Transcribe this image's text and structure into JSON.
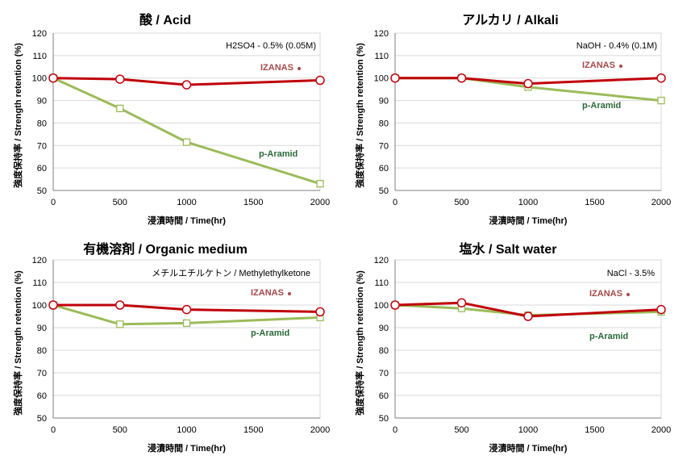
{
  "colors": {
    "izanas": "#c0000a",
    "aramid": "#9bbb59",
    "izanas_label": "#a44a49",
    "aramid_label": "#2a6a3a",
    "grid": "#d9d9d9"
  },
  "chart_data": [
    {
      "type": "line",
      "title": "酸 / Acid",
      "note": "H2SO4 - 0.5% (0.05M)",
      "xlabel": "浸漬時間 / Time(hr)",
      "ylabel": "強度保持率 / Strength retention (%)",
      "xlim": [
        0,
        2000
      ],
      "ylim": [
        50,
        120
      ],
      "xticks": [
        0,
        500,
        1000,
        1500,
        2000
      ],
      "yticks": [
        50,
        60,
        70,
        80,
        90,
        100,
        110,
        120
      ],
      "grid": true,
      "series": [
        {
          "name": "IZANAS",
          "marker": "circle",
          "x": [
            0,
            500,
            1000,
            2000
          ],
          "y": [
            100,
            99.5,
            97,
            99
          ]
        },
        {
          "name": "p-Aramid",
          "marker": "square",
          "x": [
            0,
            500,
            1000,
            2000
          ],
          "y": [
            100,
            86.5,
            71.5,
            53
          ]
        }
      ]
    },
    {
      "type": "line",
      "title": "アルカリ / Alkali",
      "note": "NaOH - 0.4% (0.1M)",
      "xlabel": "浸漬時間 / Time(hr)",
      "ylabel": "強度保持率 / Strength retention (%)",
      "xlim": [
        0,
        2000
      ],
      "ylim": [
        50,
        120
      ],
      "xticks": [
        0,
        500,
        1000,
        1500,
        2000
      ],
      "yticks": [
        50,
        60,
        70,
        80,
        90,
        100,
        110,
        120
      ],
      "grid": true,
      "series": [
        {
          "name": "IZANAS",
          "marker": "circle",
          "x": [
            0,
            500,
            1000,
            2000
          ],
          "y": [
            100,
            100,
            97.5,
            100
          ]
        },
        {
          "name": "p-Aramid",
          "marker": "square",
          "x": [
            0,
            500,
            1000,
            2000
          ],
          "y": [
            100,
            100,
            96,
            90
          ]
        }
      ]
    },
    {
      "type": "line",
      "title": "有機溶剤 / Organic medium",
      "note": "メチルエチルケトン / Methylethylketone",
      "xlabel": "浸漬時間 / Time(hr)",
      "ylabel": "強度保持率 / Strength retention (%)",
      "xlim": [
        0,
        2000
      ],
      "ylim": [
        50,
        120
      ],
      "xticks": [
        0,
        500,
        1000,
        1500,
        2000
      ],
      "yticks": [
        50,
        60,
        70,
        80,
        90,
        100,
        110,
        120
      ],
      "grid": true,
      "series": [
        {
          "name": "IZANAS",
          "marker": "circle",
          "x": [
            0,
            500,
            1000,
            2000
          ],
          "y": [
            100,
            100,
            98,
            97
          ]
        },
        {
          "name": "p-Aramid",
          "marker": "square",
          "x": [
            0,
            500,
            1000,
            2000
          ],
          "y": [
            100,
            91.5,
            92,
            94.5
          ]
        }
      ]
    },
    {
      "type": "line",
      "title": "塩水 / Salt water",
      "note": "NaCl - 3.5%",
      "xlabel": "浸漬時間 / Time(hr)",
      "ylabel": "強度保持率 / Strength retention (%)",
      "xlim": [
        0,
        2000
      ],
      "ylim": [
        50,
        120
      ],
      "xticks": [
        0,
        500,
        1000,
        1500,
        2000
      ],
      "yticks": [
        50,
        60,
        70,
        80,
        90,
        100,
        110,
        120
      ],
      "grid": true,
      "series": [
        {
          "name": "IZANAS",
          "marker": "circle",
          "x": [
            0,
            500,
            1000,
            2000
          ],
          "y": [
            100,
            101,
            95,
            98
          ]
        },
        {
          "name": "p-Aramid",
          "marker": "square",
          "x": [
            0,
            500,
            1000,
            2000
          ],
          "y": [
            100,
            98.5,
            95.5,
            97
          ]
        }
      ]
    }
  ]
}
